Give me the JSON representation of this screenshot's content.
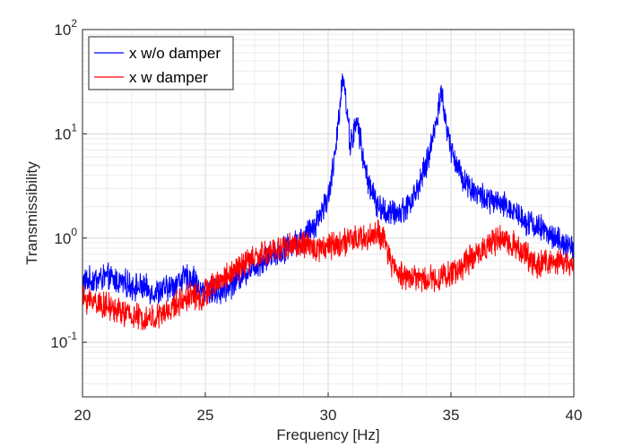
{
  "chart_data": {
    "type": "line",
    "title": "",
    "xlabel": "Frequency [Hz]",
    "ylabel": "Transmissibility",
    "xlim": [
      20,
      40
    ],
    "ylim": [
      0.03,
      100
    ],
    "yscale": "log",
    "grid": true,
    "minor_grid": true,
    "legend_placement": "top-left",
    "x_tick_labels": [
      "20",
      "25",
      "30",
      "35",
      "40"
    ],
    "y_tick_labels": [
      {
        "base": "10",
        "exp": "-1"
      },
      {
        "base": "10",
        "exp": "0"
      },
      {
        "base": "10",
        "exp": "1"
      },
      {
        "base": "10",
        "exp": "2"
      }
    ],
    "series": [
      {
        "name": "x w/o damper",
        "color": "#0000ff",
        "x": [
          20,
          20.5,
          21,
          21.5,
          22,
          22.5,
          23,
          23.5,
          24,
          24.5,
          24.8,
          25,
          25.5,
          26,
          26.5,
          27,
          27.5,
          28,
          28.5,
          29,
          29.5,
          30,
          30.3,
          30.6,
          30.9,
          31.2,
          31.5,
          32,
          32.5,
          33,
          33.5,
          34,
          34.3,
          34.6,
          34.9,
          35.3,
          35.8,
          36.5,
          37,
          37.5,
          38,
          38.5,
          39,
          39.5,
          40
        ],
        "y": [
          0.38,
          0.4,
          0.42,
          0.38,
          0.35,
          0.33,
          0.3,
          0.33,
          0.4,
          0.42,
          0.3,
          0.32,
          0.3,
          0.35,
          0.45,
          0.55,
          0.65,
          0.75,
          0.85,
          1.0,
          1.4,
          2.5,
          6.5,
          40.0,
          8.0,
          13.0,
          4.5,
          2.0,
          1.7,
          1.8,
          2.5,
          5.0,
          10.0,
          25.0,
          9.0,
          4.5,
          3.0,
          2.3,
          2.1,
          1.9,
          1.5,
          1.3,
          1.1,
          0.9,
          0.75
        ]
      },
      {
        "name": "x w damper",
        "color": "#ff0000",
        "x": [
          20,
          20.5,
          21,
          21.5,
          22,
          22.5,
          23,
          23.5,
          24,
          24.5,
          24.8,
          25,
          25.5,
          26,
          26.5,
          27,
          27.5,
          28,
          28.5,
          29,
          29.5,
          30,
          30.5,
          31,
          31.5,
          32,
          32.3,
          32.6,
          33,
          33.5,
          34,
          34.5,
          35,
          35.5,
          36,
          36.5,
          37,
          37.5,
          38,
          38.5,
          39,
          39.5,
          40
        ],
        "y": [
          0.26,
          0.25,
          0.22,
          0.2,
          0.18,
          0.17,
          0.17,
          0.2,
          0.25,
          0.3,
          0.25,
          0.3,
          0.38,
          0.45,
          0.55,
          0.65,
          0.72,
          0.8,
          0.85,
          0.85,
          0.8,
          0.85,
          0.9,
          0.95,
          1.0,
          1.1,
          0.9,
          0.55,
          0.45,
          0.42,
          0.4,
          0.42,
          0.45,
          0.55,
          0.7,
          0.85,
          0.95,
          0.9,
          0.7,
          0.55,
          0.6,
          0.58,
          0.55
        ]
      }
    ]
  }
}
